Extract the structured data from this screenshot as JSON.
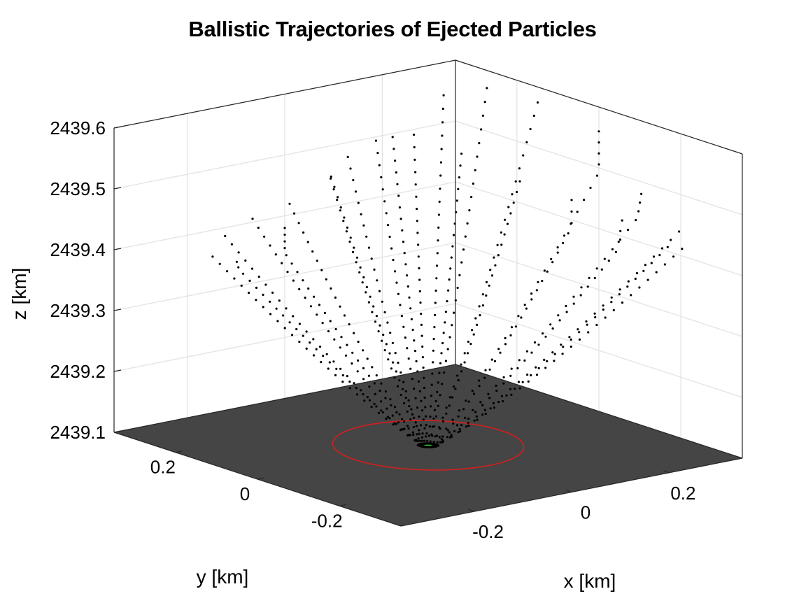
{
  "chart_data": {
    "type": "scatter",
    "title": "Ballistic Trajectories of Ejected Particles",
    "xlabel": "x [km]",
    "ylabel": "y [km]",
    "zlabel": "z [km]",
    "xlim": [
      -0.35,
      0.35
    ],
    "ylim": [
      -0.35,
      0.35
    ],
    "zlim": [
      2439.1,
      2439.6
    ],
    "x_ticks": [
      "-0.2",
      "0",
      "0.2"
    ],
    "y_ticks": [
      "-0.2",
      "0",
      "0.2"
    ],
    "z_ticks": [
      "2439.1",
      "2439.2",
      "2439.3",
      "2439.4",
      "2439.5",
      "2439.6"
    ],
    "grid": true,
    "surface_z": 2439.1,
    "crater_radius_km": 0.15,
    "colors": {
      "surface": "#454545",
      "crater_rim": "#d21f1f",
      "particles": "#000000",
      "vent": "#2fbf2f",
      "grid": "#e3e3e3",
      "box": "#262626"
    },
    "series": [
      {
        "trajectory_count": 24,
        "points_per_trajectory": 30,
        "start_radius_km": 0.01,
        "end_radius_km": [
          0.4,
          0.3,
          0.27,
          0.28,
          0.32,
          0.36,
          0.4,
          0.38,
          0.36,
          0.32,
          0.28,
          0.24,
          0.2,
          0.22,
          0.24,
          0.26,
          0.3,
          0.34,
          0.38,
          0.4,
          0.4,
          0.4,
          0.4,
          0.4
        ],
        "end_height_km": [
          0.46,
          0.5,
          0.52,
          0.5,
          0.42,
          0.35,
          0.28,
          0.24,
          0.27,
          0.33,
          0.38,
          0.42,
          0.47,
          0.52,
          0.56,
          0.58,
          0.56,
          0.52,
          0.48,
          0.43,
          0.37,
          0.34,
          0.34,
          0.38
        ]
      }
    ]
  }
}
